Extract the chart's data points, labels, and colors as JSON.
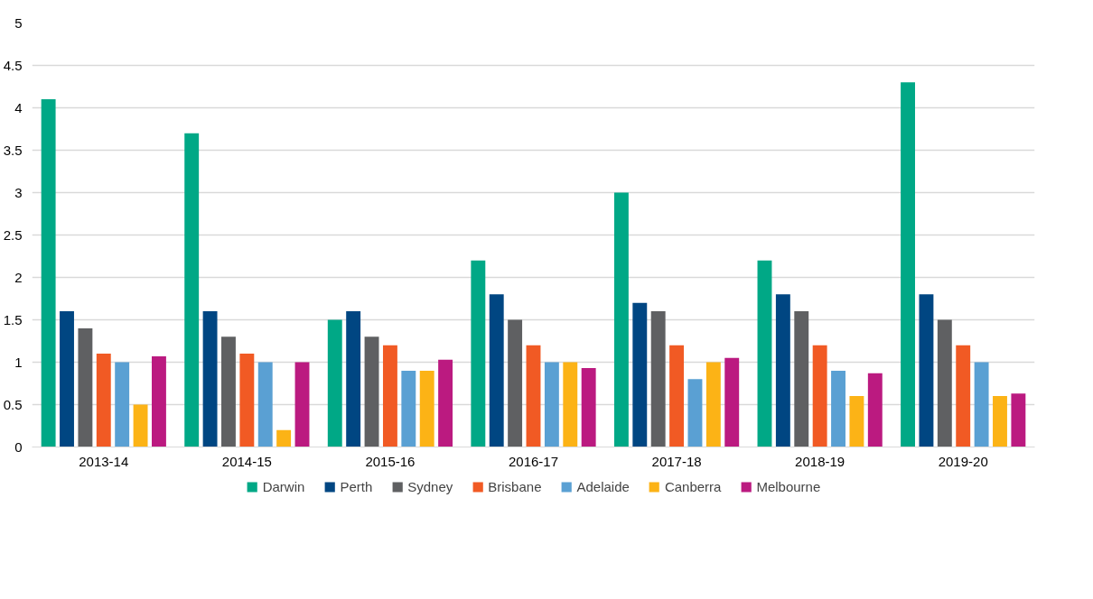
{
  "chart_data": {
    "type": "bar",
    "categories": [
      "2013-14",
      "2014-15",
      "2015-16",
      "2016-17",
      "2017-18",
      "2018-19",
      "2019-20"
    ],
    "series": [
      {
        "name": "Darwin",
        "color": "#00a886",
        "values": [
          4.1,
          3.7,
          1.5,
          2.2,
          3.0,
          2.2,
          4.3
        ]
      },
      {
        "name": "Perth",
        "color": "#004682",
        "values": [
          1.6,
          1.6,
          1.6,
          1.8,
          1.7,
          1.8,
          1.8
        ]
      },
      {
        "name": "Sydney",
        "color": "#5f6062",
        "values": [
          1.4,
          1.3,
          1.3,
          1.5,
          1.6,
          1.6,
          1.5
        ]
      },
      {
        "name": "Brisbane",
        "color": "#f15a24",
        "values": [
          1.1,
          1.1,
          1.2,
          1.2,
          1.2,
          1.2,
          1.2
        ]
      },
      {
        "name": "Adelaide",
        "color": "#5aa0d3",
        "values": [
          1.0,
          1.0,
          0.9,
          1.0,
          0.8,
          0.9,
          1.0
        ]
      },
      {
        "name": "Canberra",
        "color": "#fcb316",
        "values": [
          0.5,
          0.2,
          0.9,
          1.0,
          1.0,
          0.6,
          0.6
        ]
      },
      {
        "name": "Melbourne",
        "color": "#bb1a80",
        "values": [
          1.07,
          1.0,
          1.03,
          0.93,
          1.05,
          0.87,
          0.63
        ]
      }
    ],
    "ylim": [
      0,
      5
    ],
    "yticks": [
      0,
      0.5,
      1,
      1.5,
      2,
      2.5,
      3,
      3.5,
      4,
      4.5,
      5
    ],
    "grid": "y",
    "legend": "bottom"
  }
}
